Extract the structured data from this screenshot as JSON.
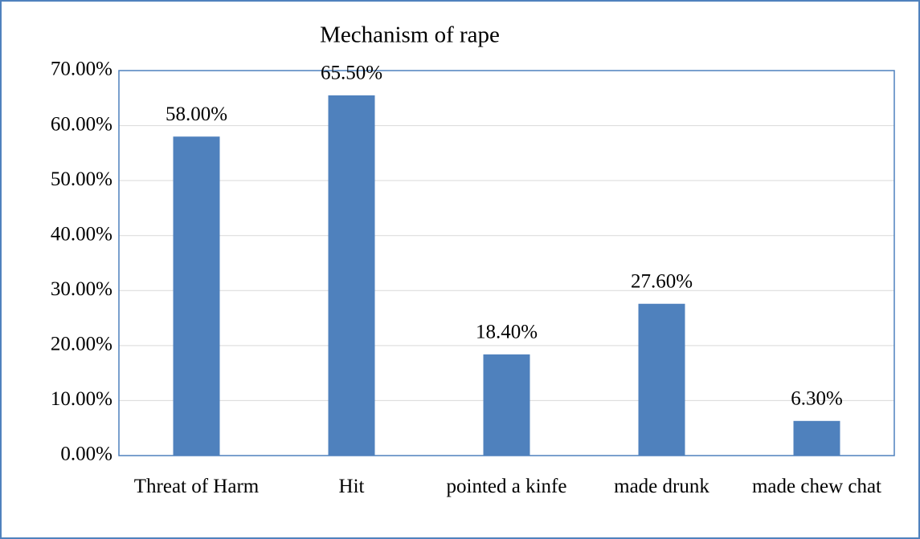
{
  "chart_data": {
    "type": "bar",
    "title": "Mechanism of rape",
    "categories": [
      "Threat of Harm",
      "Hit",
      "pointed a kinfe",
      "made drunk",
      "made chew chat"
    ],
    "values": [
      58,
      65.5,
      18.4,
      27.6,
      6.3
    ],
    "value_labels": [
      "58.00%",
      "65.50%",
      "18.40%",
      "27.60%",
      "6.30%"
    ],
    "color": "#4f81bd",
    "ylim": [
      0,
      70
    ],
    "yticks": [
      {
        "value": 0,
        "label": "0.00%"
      },
      {
        "value": 10,
        "label": "10.00%"
      },
      {
        "value": 20,
        "label": "20.00%"
      },
      {
        "value": 30,
        "label": "30.00%"
      },
      {
        "value": 40,
        "label": "40.00%"
      },
      {
        "value": 50,
        "label": "50.00%"
      },
      {
        "value": 60,
        "label": "60.00%"
      },
      {
        "value": 70,
        "label": "70.00%"
      }
    ],
    "grid": true
  }
}
